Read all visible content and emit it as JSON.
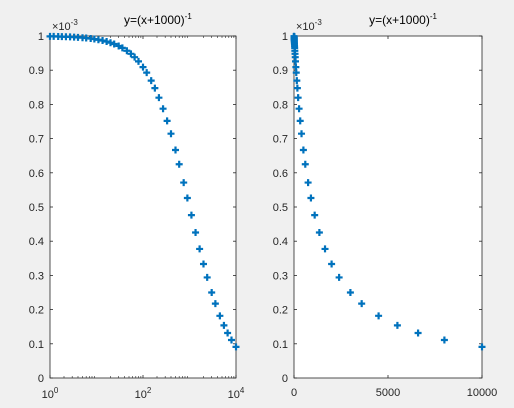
{
  "chart_data": [
    {
      "type": "scatter",
      "title": {
        "base": "y=(x+1000)",
        "sup": "-1"
      },
      "xscale": "log",
      "xlim": [
        1,
        10000
      ],
      "ylim": [
        0,
        1
      ],
      "y_exponent": {
        "base": "×10",
        "sup": "-3"
      },
      "marker": "+",
      "color": "#0072bd",
      "xticks": [
        {
          "value": 1,
          "base": "10",
          "sup": "0"
        },
        {
          "value": 100,
          "base": "10",
          "sup": "2"
        },
        {
          "value": 10000,
          "base": "10",
          "sup": "4"
        }
      ],
      "yticks": [
        {
          "value": 0,
          "label": "0"
        },
        {
          "value": 0.1,
          "label": "0.1"
        },
        {
          "value": 0.2,
          "label": "0.2"
        },
        {
          "value": 0.3,
          "label": "0.3"
        },
        {
          "value": 0.4,
          "label": "0.4"
        },
        {
          "value": 0.5,
          "label": "0.5"
        },
        {
          "value": 0.6,
          "label": "0.6"
        },
        {
          "value": 0.7,
          "label": "0.7"
        },
        {
          "value": 0.8,
          "label": "0.8"
        },
        {
          "value": 0.9,
          "label": "0.9"
        },
        {
          "value": 1,
          "label": "1"
        }
      ],
      "series": [
        {
          "x": [
            1,
            1.2,
            1.5,
            1.8,
            2.2,
            2.7,
            3.3,
            4,
            5,
            6,
            7.5,
            9,
            11,
            13.5,
            16.5,
            20,
            24,
            30,
            36,
            45,
            55,
            66,
            80,
            100,
            120,
            150,
            180,
            220,
            270,
            330,
            400,
            500,
            600,
            750,
            900,
            1100,
            1350,
            1650,
            2000,
            2400,
            3000,
            3600,
            4500,
            5500,
            6600,
            8000,
            10000
          ],
          "y": [
            0.999,
            0.9988,
            0.9985,
            0.9982,
            0.9978,
            0.9973,
            0.9967,
            0.996,
            0.995,
            0.994,
            0.9926,
            0.9911,
            0.9891,
            0.9867,
            0.9838,
            0.9804,
            0.9766,
            0.9709,
            0.9653,
            0.9569,
            0.9479,
            0.9381,
            0.9259,
            0.9091,
            0.8929,
            0.8696,
            0.8475,
            0.8197,
            0.7874,
            0.7519,
            0.7143,
            0.6667,
            0.625,
            0.5714,
            0.5263,
            0.4762,
            0.4255,
            0.3774,
            0.3333,
            0.2941,
            0.25,
            0.2174,
            0.1818,
            0.1538,
            0.1316,
            0.1111,
            0.0909
          ]
        }
      ]
    },
    {
      "type": "scatter",
      "title": {
        "base": "y=(x+1000)",
        "sup": "-1"
      },
      "xscale": "linear",
      "xlim": [
        0,
        10000
      ],
      "ylim": [
        0,
        1
      ],
      "y_exponent": {
        "base": "×10",
        "sup": "-3"
      },
      "marker": "+",
      "color": "#0072bd",
      "xticks": [
        {
          "value": 0,
          "label": "0"
        },
        {
          "value": 5000,
          "label": "5000"
        },
        {
          "value": 10000,
          "label": "10000"
        }
      ],
      "yticks": [
        {
          "value": 0,
          "label": "0"
        },
        {
          "value": 0.1,
          "label": "0.1"
        },
        {
          "value": 0.2,
          "label": "0.2"
        },
        {
          "value": 0.3,
          "label": "0.3"
        },
        {
          "value": 0.4,
          "label": "0.4"
        },
        {
          "value": 0.5,
          "label": "0.5"
        },
        {
          "value": 0.6,
          "label": "0.6"
        },
        {
          "value": 0.7,
          "label": "0.7"
        },
        {
          "value": 0.8,
          "label": "0.8"
        },
        {
          "value": 0.9,
          "label": "0.9"
        },
        {
          "value": 1,
          "label": "1"
        }
      ],
      "series": [
        {
          "x": [
            1,
            1.2,
            1.5,
            1.8,
            2.2,
            2.7,
            3.3,
            4,
            5,
            6,
            7.5,
            9,
            11,
            13.5,
            16.5,
            20,
            24,
            30,
            36,
            45,
            55,
            66,
            80,
            100,
            120,
            150,
            180,
            220,
            270,
            330,
            400,
            500,
            600,
            750,
            900,
            1100,
            1350,
            1650,
            2000,
            2400,
            3000,
            3600,
            4500,
            5500,
            6600,
            8000,
            10000
          ],
          "y": [
            0.999,
            0.9988,
            0.9985,
            0.9982,
            0.9978,
            0.9973,
            0.9967,
            0.996,
            0.995,
            0.994,
            0.9926,
            0.9911,
            0.9891,
            0.9867,
            0.9838,
            0.9804,
            0.9766,
            0.9709,
            0.9653,
            0.9569,
            0.9479,
            0.9381,
            0.9259,
            0.9091,
            0.8929,
            0.8696,
            0.8475,
            0.8197,
            0.7874,
            0.7519,
            0.7143,
            0.6667,
            0.625,
            0.5714,
            0.5263,
            0.4762,
            0.4255,
            0.3774,
            0.3333,
            0.2941,
            0.25,
            0.2174,
            0.1818,
            0.1538,
            0.1316,
            0.1111,
            0.0909
          ]
        }
      ]
    }
  ]
}
